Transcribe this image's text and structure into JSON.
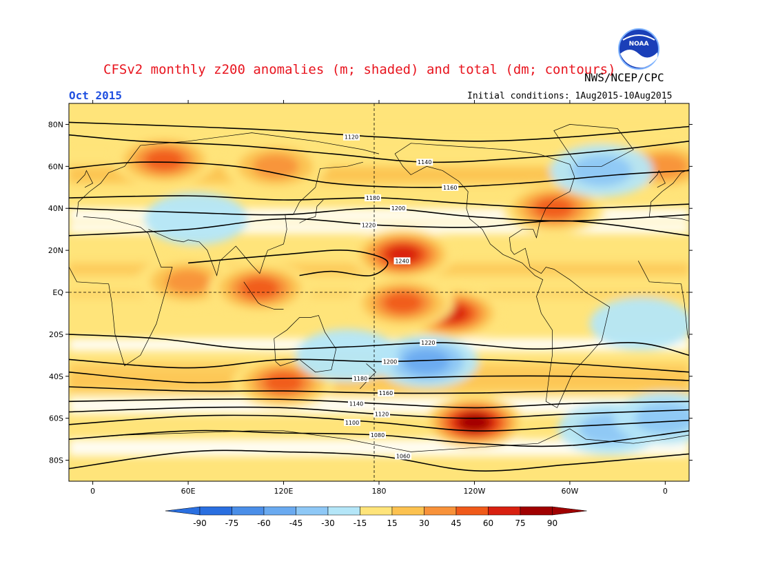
{
  "title": "CFSv2 monthly z200 anomalies (m; shaded) and total (dm; contours)",
  "agency": "NWS/NCEP/CPC",
  "logo_text": "NOAA",
  "month_label": "Oct 2015",
  "initial_conditions": "Initial conditions: 1Aug2015-10Aug2015",
  "colors": {
    "strong_neg": "#2a6fe0",
    "neg75": "#4a8ee8",
    "neg60": "#6aaaf0",
    "neg45": "#8ec8f6",
    "neg30": "#b4e6f8",
    "neutral": "#ffffff",
    "pos15": "#ffe47a",
    "pos30": "#fcc250",
    "pos45": "#f8923a",
    "pos60": "#f05a1a",
    "pos75": "#d82010",
    "strong_pos": "#a00000",
    "contour": "#000000",
    "coast": "#000000"
  },
  "chart_data": {
    "type": "heatmap",
    "title": "CFSv2 monthly z200 anomalies (m; shaded) and total (dm; contours)",
    "x_tick_labels": [
      "0",
      "60E",
      "120E",
      "180",
      "120W",
      "60W",
      "0"
    ],
    "x_tick_lons": [
      0,
      60,
      120,
      180,
      240,
      300,
      360
    ],
    "y_tick_labels": [
      "80N",
      "60N",
      "40N",
      "20N",
      "EQ",
      "20S",
      "40S",
      "60S",
      "80S"
    ],
    "y_tick_lats": [
      80,
      60,
      40,
      20,
      0,
      -20,
      -40,
      -60,
      -80
    ],
    "lon_range": [
      -15,
      375
    ],
    "lat_range": [
      -90,
      90
    ],
    "colorbar": {
      "labels": [
        "-90",
        "-75",
        "-60",
        "-45",
        "-30",
        "-15",
        "15",
        "30",
        "45",
        "60",
        "75",
        "90"
      ],
      "units": "m"
    },
    "contour_levels_dm": [
      1060,
      1080,
      1100,
      1120,
      1140,
      1160,
      1180,
      1200,
      1220,
      1240
    ],
    "contours": [
      {
        "level": 1120,
        "label": "1120",
        "points": [
          [
            -15,
            81
          ],
          [
            60,
            79
          ],
          [
            120,
            77
          ],
          [
            180,
            74
          ],
          [
            240,
            72
          ],
          [
            300,
            74
          ],
          [
            375,
            79
          ]
        ]
      },
      {
        "level": 1140,
        "label": "1140",
        "points": [
          [
            -15,
            75
          ],
          [
            30,
            72
          ],
          [
            90,
            70
          ],
          [
            150,
            66
          ],
          [
            210,
            62
          ],
          [
            270,
            64
          ],
          [
            330,
            68
          ],
          [
            375,
            72
          ]
        ]
      },
      {
        "level": 1160,
        "label": "1160",
        "points": [
          [
            -15,
            59
          ],
          [
            30,
            62
          ],
          [
            90,
            60
          ],
          [
            150,
            52
          ],
          [
            210,
            50
          ],
          [
            270,
            52
          ],
          [
            330,
            56
          ],
          [
            375,
            58
          ]
        ]
      },
      {
        "level": 1180,
        "label": "1180",
        "points": [
          [
            -15,
            45
          ],
          [
            60,
            46
          ],
          [
            120,
            44
          ],
          [
            180,
            45
          ],
          [
            240,
            42
          ],
          [
            300,
            40
          ],
          [
            375,
            42
          ]
        ]
      },
      {
        "level": 1200,
        "label": "1200",
        "points": [
          [
            -15,
            40
          ],
          [
            60,
            38
          ],
          [
            120,
            37
          ],
          [
            180,
            40
          ],
          [
            240,
            36
          ],
          [
            300,
            34
          ],
          [
            375,
            37
          ]
        ]
      },
      {
        "level": 1220,
        "label": "1220",
        "points": [
          [
            -15,
            27
          ],
          [
            60,
            30
          ],
          [
            120,
            35
          ],
          [
            180,
            32
          ],
          [
            240,
            31
          ],
          [
            300,
            34
          ],
          [
            375,
            27
          ]
        ]
      },
      {
        "level": 1240,
        "label": "1240",
        "points": [
          [
            60,
            14
          ],
          [
            120,
            18
          ],
          [
            160,
            20
          ],
          [
            185,
            15
          ],
          [
            175,
            8
          ],
          [
            150,
            10
          ],
          [
            130,
            8
          ]
        ]
      },
      {
        "level": 1220,
        "label": "1220",
        "points": [
          [
            -15,
            -20
          ],
          [
            40,
            -22
          ],
          [
            100,
            -27
          ],
          [
            160,
            -26
          ],
          [
            220,
            -24
          ],
          [
            280,
            -27
          ],
          [
            340,
            -24
          ],
          [
            375,
            -30
          ]
        ]
      },
      {
        "level": 1200,
        "label": "1200",
        "points": [
          [
            -15,
            -32
          ],
          [
            60,
            -36
          ],
          [
            120,
            -32
          ],
          [
            180,
            -33
          ],
          [
            240,
            -32
          ],
          [
            300,
            -34
          ],
          [
            375,
            -38
          ]
        ]
      },
      {
        "level": 1180,
        "label": "1180",
        "points": [
          [
            -15,
            -38
          ],
          [
            60,
            -43
          ],
          [
            120,
            -41
          ],
          [
            180,
            -41
          ],
          [
            240,
            -40
          ],
          [
            300,
            -40
          ],
          [
            375,
            -42
          ]
        ]
      },
      {
        "level": 1160,
        "label": "1160",
        "points": [
          [
            -15,
            -45
          ],
          [
            60,
            -47
          ],
          [
            120,
            -47
          ],
          [
            180,
            -48
          ],
          [
            240,
            -48
          ],
          [
            300,
            -47
          ],
          [
            375,
            -47
          ]
        ]
      },
      {
        "level": 1140,
        "label": "1140",
        "points": [
          [
            -15,
            -52
          ],
          [
            60,
            -51
          ],
          [
            120,
            -51
          ],
          [
            180,
            -53
          ],
          [
            240,
            -55
          ],
          [
            300,
            -53
          ],
          [
            375,
            -52
          ]
        ]
      },
      {
        "level": 1120,
        "label": "1120",
        "points": [
          [
            -15,
            -57
          ],
          [
            60,
            -55
          ],
          [
            120,
            -55
          ],
          [
            180,
            -58
          ],
          [
            240,
            -60
          ],
          [
            300,
            -58
          ],
          [
            375,
            -56
          ]
        ]
      },
      {
        "level": 1100,
        "label": "1100",
        "points": [
          [
            -15,
            -63
          ],
          [
            60,
            -59
          ],
          [
            120,
            -59
          ],
          [
            180,
            -62
          ],
          [
            240,
            -66
          ],
          [
            300,
            -64
          ],
          [
            375,
            -61
          ]
        ]
      },
      {
        "level": 1080,
        "label": "1080",
        "points": [
          [
            -15,
            -70
          ],
          [
            60,
            -66
          ],
          [
            120,
            -67
          ],
          [
            180,
            -68
          ],
          [
            240,
            -72
          ],
          [
            300,
            -73
          ],
          [
            375,
            -66
          ]
        ]
      },
      {
        "level": 1060,
        "label": "1060",
        "points": [
          [
            -15,
            -84
          ],
          [
            60,
            -76
          ],
          [
            120,
            -76
          ],
          [
            180,
            -78
          ],
          [
            240,
            -85
          ],
          [
            300,
            -82
          ],
          [
            375,
            -77
          ]
        ]
      }
    ],
    "anomaly_features": [
      {
        "lon": 45,
        "lat": 63,
        "value": 60
      },
      {
        "lon": 115,
        "lat": 60,
        "value": 45
      },
      {
        "lon": 60,
        "lat": 5,
        "value": 45
      },
      {
        "lon": 105,
        "lat": 2,
        "value": 60
      },
      {
        "lon": 195,
        "lat": 18,
        "value": 75
      },
      {
        "lon": 225,
        "lat": -10,
        "value": 75
      },
      {
        "lon": 195,
        "lat": -5,
        "value": 60
      },
      {
        "lon": 290,
        "lat": 40,
        "value": 60
      },
      {
        "lon": 360,
        "lat": 60,
        "value": 45
      },
      {
        "lon": 120,
        "lat": -43,
        "value": 60
      },
      {
        "lon": 240,
        "lat": -62,
        "value": 90
      },
      {
        "lon": 210,
        "lat": -33,
        "value": -45
      },
      {
        "lon": 325,
        "lat": -65,
        "value": -30
      },
      {
        "lon": 320,
        "lat": 58,
        "value": -30
      },
      {
        "lon": 65,
        "lat": 35,
        "value": -15
      },
      {
        "lon": 360,
        "lat": -60,
        "value": -30
      },
      {
        "lon": 345,
        "lat": -15,
        "value": -15
      },
      {
        "lon": 160,
        "lat": -30,
        "value": -15
      }
    ]
  }
}
